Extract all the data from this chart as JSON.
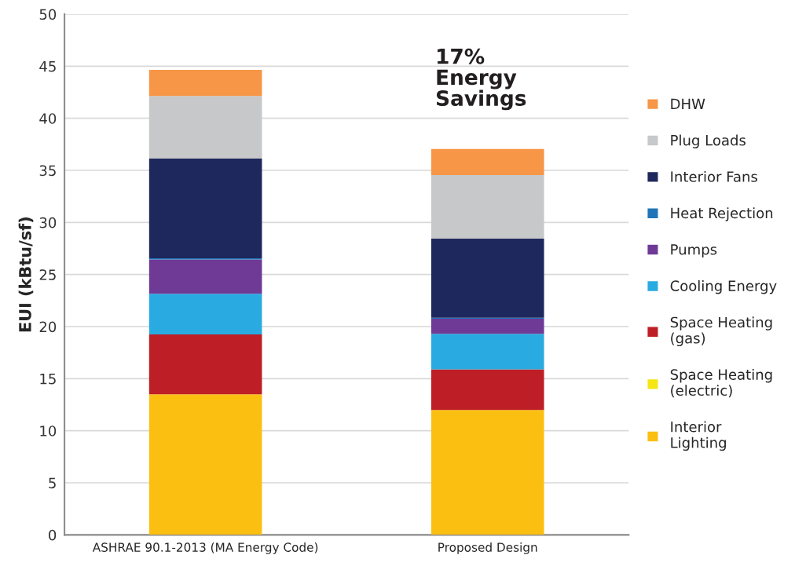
{
  "chart_data": {
    "type": "bar",
    "stacked": true,
    "ylabel": "EUI (kBtu/sf)",
    "categories": [
      "ASHRAE 90.1-2013 (MA Energy Code)",
      "Proposed Design"
    ],
    "series": [
      {
        "name": "Interior Lighting",
        "color": "#fbbf12",
        "values": [
          13.5,
          12.0
        ]
      },
      {
        "name": "Space Heating (electric)",
        "color": "#f5e614",
        "values": [
          0,
          0
        ]
      },
      {
        "name": "Space Heating (gas)",
        "color": "#be1e26",
        "values": [
          5.75,
          3.9
        ]
      },
      {
        "name": "Cooling Energy",
        "color": "#29abe2",
        "values": [
          3.9,
          3.4
        ]
      },
      {
        "name": "Pumps",
        "color": "#6e3a96",
        "values": [
          3.3,
          1.45
        ]
      },
      {
        "name": "Heat Rejection",
        "color": "#1f75b8",
        "values": [
          0.1,
          0.1
        ]
      },
      {
        "name": "Interior Fans",
        "color": "#1f285c",
        "values": [
          9.6,
          7.6
        ]
      },
      {
        "name": "Plug Loads",
        "color": "#c7c8ca",
        "values": [
          6.0,
          6.1
        ]
      },
      {
        "name": "DHW",
        "color": "#f79646",
        "values": [
          2.5,
          2.5
        ]
      }
    ],
    "ylim": [
      0,
      50
    ],
    "yticks": [
      0,
      5,
      10,
      15,
      20,
      25,
      30,
      35,
      40,
      45,
      50
    ],
    "grid": "y",
    "legend": "right",
    "annotations": [
      "17%\nEnergy\nSavings"
    ]
  }
}
